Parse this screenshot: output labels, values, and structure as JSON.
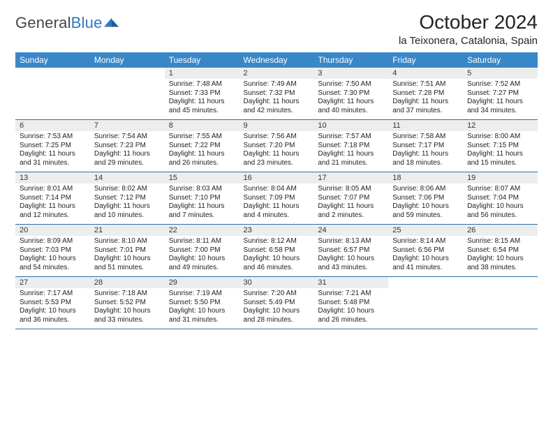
{
  "brand": {
    "name_gray": "General",
    "name_blue": "Blue"
  },
  "title": "October 2024",
  "location": "la Teixonera, Catalonia, Spain",
  "colors": {
    "header_bg": "#3a87c8",
    "row_rule": "#2f6ea8",
    "daynum_bg": "#eceeee",
    "brand_blue": "#2f79bf"
  },
  "weekdays": [
    "Sunday",
    "Monday",
    "Tuesday",
    "Wednesday",
    "Thursday",
    "Friday",
    "Saturday"
  ],
  "leading_blanks": 2,
  "days": [
    {
      "n": 1,
      "sr": "7:48 AM",
      "ss": "7:33 PM",
      "dl": "11 hours and 45 minutes."
    },
    {
      "n": 2,
      "sr": "7:49 AM",
      "ss": "7:32 PM",
      "dl": "11 hours and 42 minutes."
    },
    {
      "n": 3,
      "sr": "7:50 AM",
      "ss": "7:30 PM",
      "dl": "11 hours and 40 minutes."
    },
    {
      "n": 4,
      "sr": "7:51 AM",
      "ss": "7:28 PM",
      "dl": "11 hours and 37 minutes."
    },
    {
      "n": 5,
      "sr": "7:52 AM",
      "ss": "7:27 PM",
      "dl": "11 hours and 34 minutes."
    },
    {
      "n": 6,
      "sr": "7:53 AM",
      "ss": "7:25 PM",
      "dl": "11 hours and 31 minutes."
    },
    {
      "n": 7,
      "sr": "7:54 AM",
      "ss": "7:23 PM",
      "dl": "11 hours and 29 minutes."
    },
    {
      "n": 8,
      "sr": "7:55 AM",
      "ss": "7:22 PM",
      "dl": "11 hours and 26 minutes."
    },
    {
      "n": 9,
      "sr": "7:56 AM",
      "ss": "7:20 PM",
      "dl": "11 hours and 23 minutes."
    },
    {
      "n": 10,
      "sr": "7:57 AM",
      "ss": "7:18 PM",
      "dl": "11 hours and 21 minutes."
    },
    {
      "n": 11,
      "sr": "7:58 AM",
      "ss": "7:17 PM",
      "dl": "11 hours and 18 minutes."
    },
    {
      "n": 12,
      "sr": "8:00 AM",
      "ss": "7:15 PM",
      "dl": "11 hours and 15 minutes."
    },
    {
      "n": 13,
      "sr": "8:01 AM",
      "ss": "7:14 PM",
      "dl": "11 hours and 12 minutes."
    },
    {
      "n": 14,
      "sr": "8:02 AM",
      "ss": "7:12 PM",
      "dl": "11 hours and 10 minutes."
    },
    {
      "n": 15,
      "sr": "8:03 AM",
      "ss": "7:10 PM",
      "dl": "11 hours and 7 minutes."
    },
    {
      "n": 16,
      "sr": "8:04 AM",
      "ss": "7:09 PM",
      "dl": "11 hours and 4 minutes."
    },
    {
      "n": 17,
      "sr": "8:05 AM",
      "ss": "7:07 PM",
      "dl": "11 hours and 2 minutes."
    },
    {
      "n": 18,
      "sr": "8:06 AM",
      "ss": "7:06 PM",
      "dl": "10 hours and 59 minutes."
    },
    {
      "n": 19,
      "sr": "8:07 AM",
      "ss": "7:04 PM",
      "dl": "10 hours and 56 minutes."
    },
    {
      "n": 20,
      "sr": "8:09 AM",
      "ss": "7:03 PM",
      "dl": "10 hours and 54 minutes."
    },
    {
      "n": 21,
      "sr": "8:10 AM",
      "ss": "7:01 PM",
      "dl": "10 hours and 51 minutes."
    },
    {
      "n": 22,
      "sr": "8:11 AM",
      "ss": "7:00 PM",
      "dl": "10 hours and 49 minutes."
    },
    {
      "n": 23,
      "sr": "8:12 AM",
      "ss": "6:58 PM",
      "dl": "10 hours and 46 minutes."
    },
    {
      "n": 24,
      "sr": "8:13 AM",
      "ss": "6:57 PM",
      "dl": "10 hours and 43 minutes."
    },
    {
      "n": 25,
      "sr": "8:14 AM",
      "ss": "6:56 PM",
      "dl": "10 hours and 41 minutes."
    },
    {
      "n": 26,
      "sr": "8:15 AM",
      "ss": "6:54 PM",
      "dl": "10 hours and 38 minutes."
    },
    {
      "n": 27,
      "sr": "7:17 AM",
      "ss": "5:53 PM",
      "dl": "10 hours and 36 minutes."
    },
    {
      "n": 28,
      "sr": "7:18 AM",
      "ss": "5:52 PM",
      "dl": "10 hours and 33 minutes."
    },
    {
      "n": 29,
      "sr": "7:19 AM",
      "ss": "5:50 PM",
      "dl": "10 hours and 31 minutes."
    },
    {
      "n": 30,
      "sr": "7:20 AM",
      "ss": "5:49 PM",
      "dl": "10 hours and 28 minutes."
    },
    {
      "n": 31,
      "sr": "7:21 AM",
      "ss": "5:48 PM",
      "dl": "10 hours and 26 minutes."
    }
  ],
  "labels": {
    "sunrise": "Sunrise:",
    "sunset": "Sunset:",
    "daylight": "Daylight:"
  }
}
